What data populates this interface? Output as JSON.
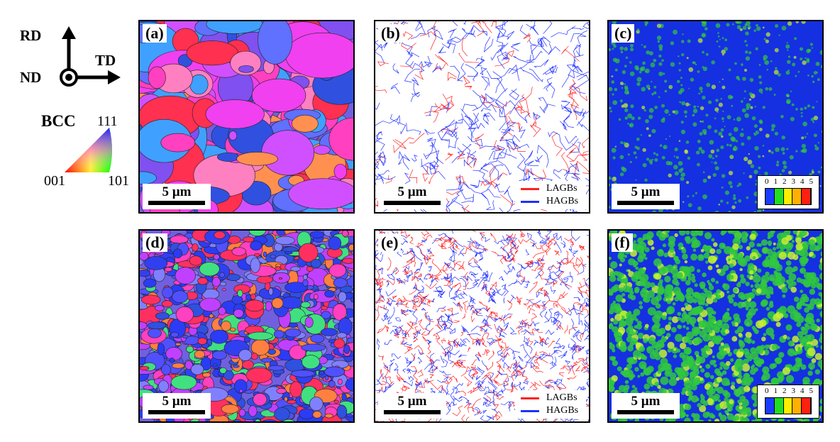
{
  "orientation": {
    "rd": "RD",
    "td": "TD",
    "nd": "ND"
  },
  "ipf_key": {
    "structure": "BCC",
    "corner_111": "111",
    "corner_001": "001",
    "corner_101": "101"
  },
  "panels": [
    {
      "label": "(a)",
      "type": "ipf",
      "scale": "5 µm"
    },
    {
      "label": "(b)",
      "type": "boundary",
      "scale": "5 µm"
    },
    {
      "label": "(c)",
      "type": "kam",
      "scale": "5 µm"
    },
    {
      "label": "(d)",
      "type": "ipf",
      "scale": "5 µm"
    },
    {
      "label": "(e)",
      "type": "boundary",
      "scale": "5 µm"
    },
    {
      "label": "(f)",
      "type": "kam",
      "scale": "5 µm"
    }
  ],
  "boundary_legend": {
    "lagb": "LAGBs",
    "hagb": "HAGBs",
    "lagb_color": "#ff2020",
    "hagb_color": "#2030ff"
  },
  "kam_legend": {
    "ticks": [
      "0",
      "1",
      "2",
      "3",
      "4",
      "5"
    ],
    "colors": [
      "#1a3cff",
      "#22dd22",
      "#ffee00",
      "#ffb000",
      "#ff2010"
    ]
  }
}
